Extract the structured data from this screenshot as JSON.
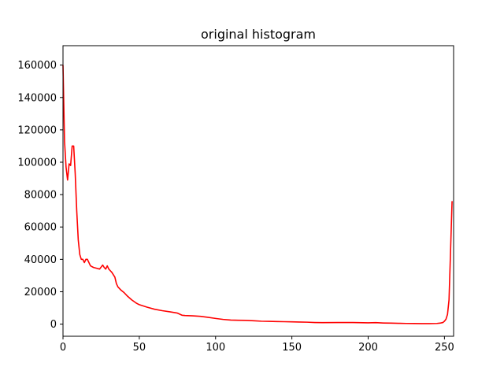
{
  "chart_data": {
    "type": "line",
    "title": "original histogram",
    "xlabel": "",
    "ylabel": "",
    "xlim": [
      0,
      256
    ],
    "ylim": [
      -7500,
      172000
    ],
    "xticks": [
      0,
      50,
      100,
      150,
      200,
      250
    ],
    "yticks": [
      0,
      20000,
      40000,
      60000,
      80000,
      100000,
      120000,
      140000,
      160000
    ],
    "grid": false,
    "series": [
      {
        "color": "#ff0000",
        "x": [
          0,
          1,
          2,
          3,
          4,
          5,
          6,
          7,
          8,
          9,
          10,
          11,
          12,
          13,
          14,
          15,
          16,
          18,
          20,
          22,
          24,
          26,
          27,
          28,
          29,
          30,
          31,
          32,
          34,
          35,
          36,
          38,
          40,
          42,
          45,
          48,
          50,
          55,
          60,
          65,
          70,
          75,
          78,
          80,
          85,
          90,
          95,
          100,
          105,
          110,
          115,
          120,
          125,
          130,
          135,
          140,
          145,
          150,
          155,
          160,
          165,
          170,
          180,
          190,
          200,
          205,
          210,
          215,
          220,
          225,
          230,
          235,
          240,
          245,
          247,
          249,
          250,
          251,
          252,
          253,
          254,
          255
        ],
        "y": [
          160000,
          113000,
          97000,
          89000,
          99000,
          98000,
          110000,
          110000,
          93000,
          70000,
          52000,
          43000,
          40000,
          40000,
          38000,
          40000,
          40000,
          36000,
          35000,
          34500,
          34000,
          36500,
          35000,
          34000,
          36000,
          34000,
          33000,
          32000,
          29000,
          25000,
          23000,
          21000,
          19500,
          17500,
          15000,
          13000,
          12000,
          10500,
          9200,
          8300,
          7600,
          6800,
          5500,
          5300,
          5100,
          4800,
          4200,
          3500,
          2900,
          2500,
          2400,
          2300,
          2100,
          1800,
          1700,
          1600,
          1500,
          1400,
          1300,
          1200,
          1000,
          900,
          1000,
          1000,
          800,
          900,
          700,
          600,
          500,
          400,
          350,
          300,
          300,
          400,
          600,
          1000,
          1800,
          3000,
          6000,
          15000,
          45000,
          76000
        ]
      }
    ]
  }
}
